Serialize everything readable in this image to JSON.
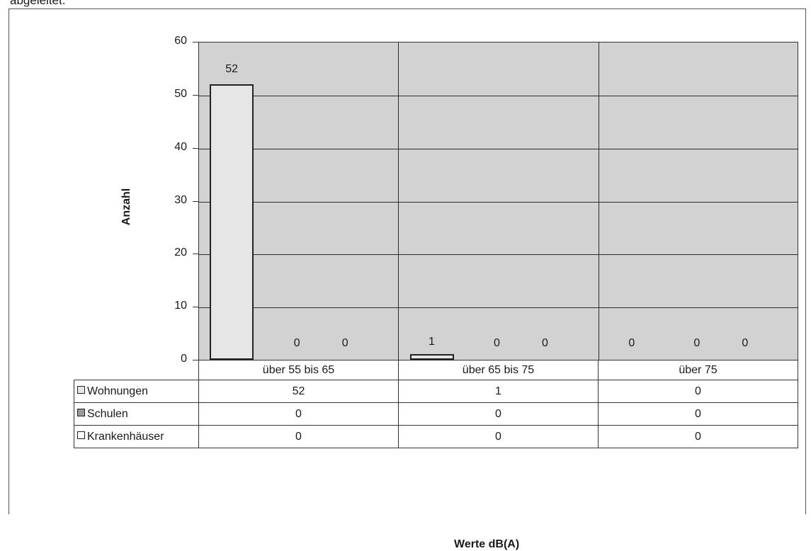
{
  "top_text": "abgeleitet.",
  "chart_data": {
    "type": "bar",
    "categories": [
      "über 55 bis 65",
      "über 65 bis 75",
      "über 75"
    ],
    "series": [
      {
        "name": "Wohnungen",
        "values": [
          52,
          1,
          0
        ],
        "color": "#e6e6e6"
      },
      {
        "name": "Schulen",
        "values": [
          0,
          0,
          0
        ],
        "color": "#9a9a9a"
      },
      {
        "name": "Krankenhäuser",
        "values": [
          0,
          0,
          0
        ],
        "color": "#ffffff"
      }
    ],
    "xlabel": "Werte dB(A)",
    "ylabel": "Anzahl",
    "ylim": [
      0,
      60
    ],
    "yticks": [
      0,
      10,
      20,
      30,
      40,
      50,
      60
    ],
    "grid": true,
    "data_labels": true,
    "legend": "data-table",
    "plot_background": "#d2d2d2"
  }
}
